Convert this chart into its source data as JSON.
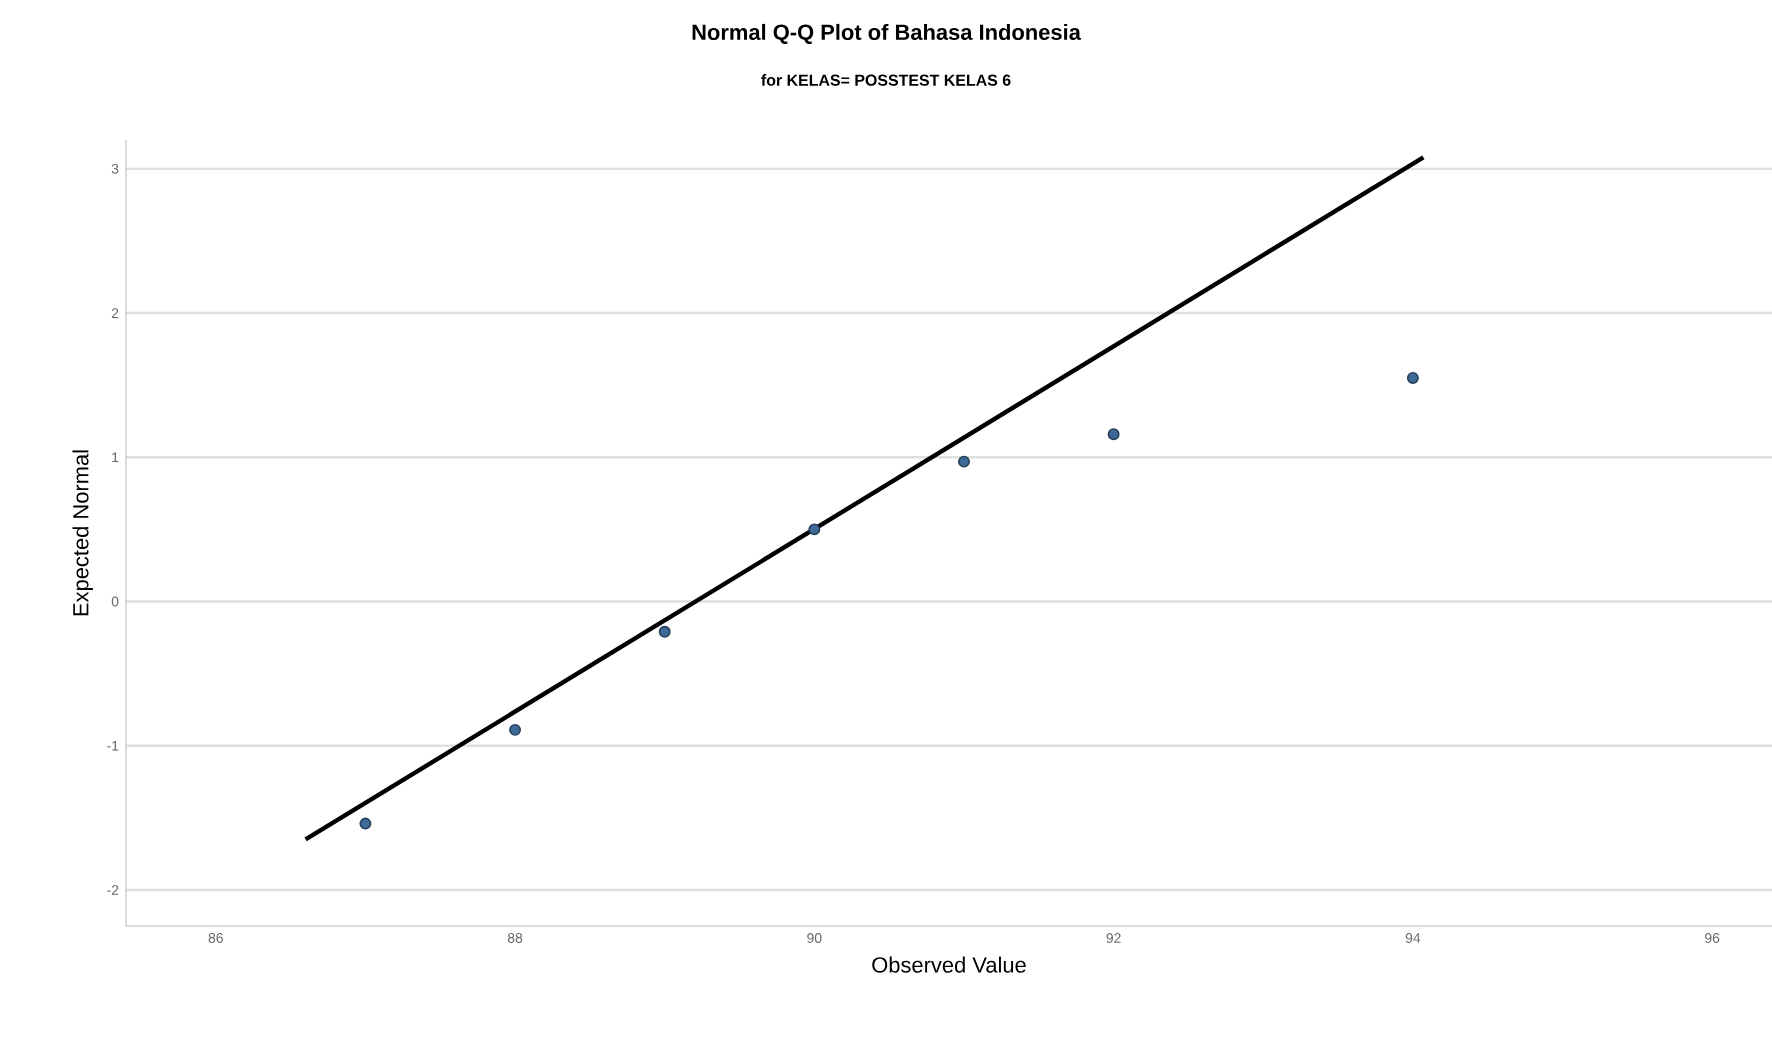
{
  "chart_data": {
    "type": "scatter",
    "title": "Normal Q-Q Plot of Bahasa Indonesia",
    "subtitle": "for KELAS= POSSTEST KELAS 6",
    "xlabel": "Observed Value",
    "ylabel": "Expected Normal",
    "series": [
      {
        "type": "scatter",
        "color": "#3d6a96",
        "x": [
          87,
          88,
          89,
          90,
          91,
          92,
          94
        ],
        "values": [
          -1.54,
          -0.89,
          -0.21,
          0.5,
          0.97,
          1.16,
          1.55
        ],
        "marker": "circle"
      },
      {
        "type": "line",
        "color": "#000000",
        "x": [
          86.6,
          94.07
        ],
        "values": [
          -1.65,
          3.08
        ],
        "marker": "none",
        "line_style": "solid"
      }
    ],
    "xlim": [
      85.4,
      96.4
    ],
    "xticks": [
      86,
      88,
      90,
      92,
      94,
      96
    ],
    "ylim": [
      -2.25,
      3.2
    ],
    "yticks": [
      -2,
      -1,
      0,
      1,
      2,
      3
    ],
    "grid": "y"
  }
}
